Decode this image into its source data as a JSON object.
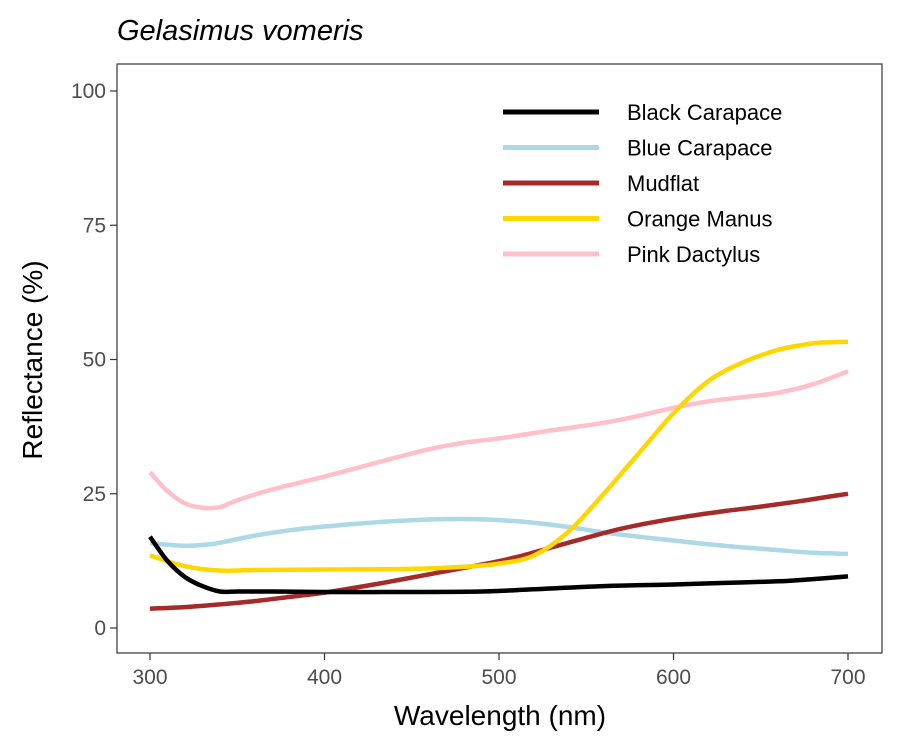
{
  "chart_data": {
    "type": "line",
    "title": "Gelasimus vomeris",
    "xlabel": "Wavelength (nm)",
    "ylabel": "Reflectance (%)",
    "xlim": [
      300,
      700
    ],
    "ylim": [
      0,
      100
    ],
    "x_ticks": [
      300,
      400,
      500,
      600,
      700
    ],
    "y_ticks": [
      0,
      25,
      50,
      75,
      100
    ],
    "grid": false,
    "legend_position": "top-right",
    "series": [
      {
        "name": "Black Carapace",
        "color": "#000000",
        "points": [
          [
            300,
            17
          ],
          [
            310,
            12.5
          ],
          [
            320,
            9.5
          ],
          [
            330,
            7.8
          ],
          [
            340,
            6.8
          ],
          [
            350,
            6.8
          ],
          [
            370,
            6.8
          ],
          [
            400,
            6.7
          ],
          [
            450,
            6.7
          ],
          [
            490,
            6.8
          ],
          [
            520,
            7.2
          ],
          [
            560,
            7.8
          ],
          [
            600,
            8.1
          ],
          [
            630,
            8.4
          ],
          [
            660,
            8.7
          ],
          [
            680,
            9.1
          ],
          [
            700,
            9.6
          ]
        ]
      },
      {
        "name": "Blue Carapace",
        "color": "#add8e6",
        "points": [
          [
            300,
            15.8
          ],
          [
            320,
            15.3
          ],
          [
            335,
            15.6
          ],
          [
            345,
            16.2
          ],
          [
            360,
            17.2
          ],
          [
            380,
            18.2
          ],
          [
            400,
            18.9
          ],
          [
            430,
            19.7
          ],
          [
            460,
            20.2
          ],
          [
            480,
            20.3
          ],
          [
            500,
            20.1
          ],
          [
            520,
            19.6
          ],
          [
            540,
            18.8
          ],
          [
            560,
            17.8
          ],
          [
            580,
            17
          ],
          [
            600,
            16.3
          ],
          [
            620,
            15.6
          ],
          [
            640,
            15
          ],
          [
            660,
            14.5
          ],
          [
            680,
            14
          ],
          [
            700,
            13.8
          ]
        ]
      },
      {
        "name": "Mudflat",
        "color": "#a52a2a",
        "points": [
          [
            300,
            3.6
          ],
          [
            320,
            3.9
          ],
          [
            340,
            4.4
          ],
          [
            360,
            5
          ],
          [
            380,
            5.8
          ],
          [
            400,
            6.6
          ],
          [
            430,
            8.2
          ],
          [
            460,
            10
          ],
          [
            490,
            11.8
          ],
          [
            510,
            13.2
          ],
          [
            530,
            15
          ],
          [
            550,
            16.8
          ],
          [
            570,
            18.5
          ],
          [
            590,
            19.8
          ],
          [
            610,
            20.9
          ],
          [
            630,
            21.8
          ],
          [
            650,
            22.6
          ],
          [
            670,
            23.5
          ],
          [
            690,
            24.5
          ],
          [
            700,
            25
          ]
        ]
      },
      {
        "name": "Orange Manus",
        "color": "#ffd700",
        "points": [
          [
            300,
            13.5
          ],
          [
            320,
            11.5
          ],
          [
            340,
            10.7
          ],
          [
            360,
            10.8
          ],
          [
            400,
            10.9
          ],
          [
            450,
            11
          ],
          [
            480,
            11.4
          ],
          [
            500,
            12
          ],
          [
            520,
            13.5
          ],
          [
            540,
            18
          ],
          [
            560,
            25
          ],
          [
            580,
            32.5
          ],
          [
            600,
            40
          ],
          [
            620,
            46
          ],
          [
            640,
            49.5
          ],
          [
            660,
            51.8
          ],
          [
            680,
            53
          ],
          [
            690,
            53.2
          ],
          [
            700,
            53.3
          ]
        ]
      },
      {
        "name": "Pink Dactylus",
        "color": "#ffc0cb",
        "points": [
          [
            300,
            29
          ],
          [
            310,
            25.5
          ],
          [
            320,
            23.2
          ],
          [
            330,
            22.4
          ],
          [
            340,
            22.5
          ],
          [
            350,
            23.8
          ],
          [
            370,
            25.8
          ],
          [
            400,
            28.2
          ],
          [
            430,
            30.8
          ],
          [
            460,
            33.3
          ],
          [
            480,
            34.5
          ],
          [
            500,
            35.3
          ],
          [
            530,
            36.8
          ],
          [
            560,
            38.2
          ],
          [
            580,
            39.5
          ],
          [
            600,
            41
          ],
          [
            620,
            42.2
          ],
          [
            640,
            43
          ],
          [
            660,
            43.8
          ],
          [
            680,
            45.4
          ],
          [
            700,
            47.8
          ]
        ]
      }
    ]
  }
}
